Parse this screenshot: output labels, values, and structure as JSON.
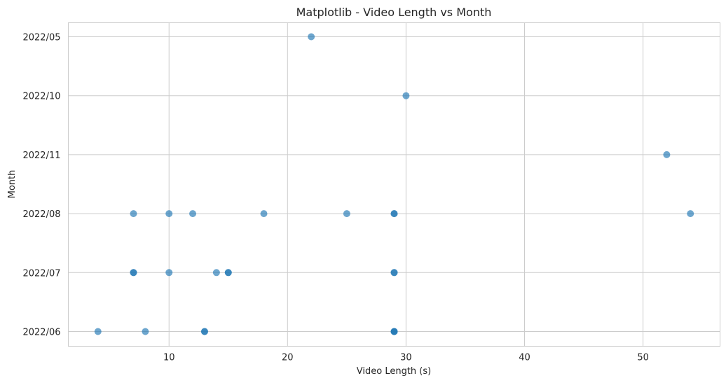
{
  "chart_data": {
    "type": "scatter",
    "title": "Matplotlib - Video Length vs Month",
    "xlabel": "Video Length (s)",
    "ylabel": "Month",
    "xlim": [
      1.5,
      56.5
    ],
    "xticks": [
      10,
      20,
      30,
      40,
      50
    ],
    "y_categories": [
      "2022/06",
      "2022/07",
      "2022/08",
      "2022/11",
      "2022/10",
      "2022/05"
    ],
    "grid": true,
    "point_color": "#1f77b4",
    "point_alpha": 0.65,
    "points": [
      {
        "x": 22,
        "y": "2022/05"
      },
      {
        "x": 30,
        "y": "2022/10"
      },
      {
        "x": 52,
        "y": "2022/11"
      },
      {
        "x": 7,
        "y": "2022/08"
      },
      {
        "x": 10,
        "y": "2022/08"
      },
      {
        "x": 12,
        "y": "2022/08"
      },
      {
        "x": 18,
        "y": "2022/08"
      },
      {
        "x": 25,
        "y": "2022/08"
      },
      {
        "x": 29,
        "y": "2022/08"
      },
      {
        "x": 29,
        "y": "2022/08"
      },
      {
        "x": 54,
        "y": "2022/08"
      },
      {
        "x": 7,
        "y": "2022/07"
      },
      {
        "x": 7,
        "y": "2022/07"
      },
      {
        "x": 10,
        "y": "2022/07"
      },
      {
        "x": 14,
        "y": "2022/07"
      },
      {
        "x": 15,
        "y": "2022/07"
      },
      {
        "x": 15,
        "y": "2022/07"
      },
      {
        "x": 29,
        "y": "2022/07"
      },
      {
        "x": 29,
        "y": "2022/07"
      },
      {
        "x": 4,
        "y": "2022/06"
      },
      {
        "x": 8,
        "y": "2022/06"
      },
      {
        "x": 13,
        "y": "2022/06"
      },
      {
        "x": 13,
        "y": "2022/06"
      },
      {
        "x": 29,
        "y": "2022/06"
      },
      {
        "x": 29,
        "y": "2022/06"
      },
      {
        "x": 29,
        "y": "2022/06"
      }
    ]
  }
}
